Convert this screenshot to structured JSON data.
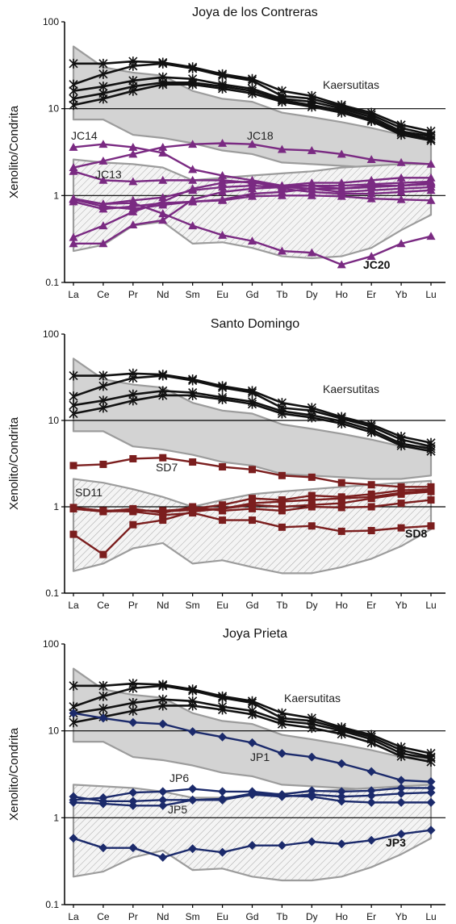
{
  "chart_data": [
    {
      "type": "line",
      "title": "Joya de los Contreras",
      "ylabel": "Xenolito/Condrita",
      "xlabel": "",
      "categories": [
        "La",
        "Ce",
        "Pr",
        "Nd",
        "Sm",
        "Eu",
        "Gd",
        "Tb",
        "Dy",
        "Ho",
        "Er",
        "Yb",
        "Lu"
      ],
      "yscale": "log",
      "ylim": [
        0.1,
        100
      ],
      "yticks": [
        "100",
        "10",
        "1",
        "0.1"
      ],
      "ref_lines": [
        10,
        1
      ],
      "fields": [
        {
          "label": "Kaersutitas",
          "style": "solid-gray",
          "upper": [
            52,
            30,
            26,
            24,
            16,
            13,
            12,
            9,
            8,
            7,
            6,
            5,
            5
          ],
          "lower": [
            7.5,
            7.5,
            5,
            4.6,
            4,
            3.3,
            3,
            2.4,
            2.3,
            2.2,
            2.1,
            2.1,
            2.3
          ]
        },
        {
          "label": "",
          "style": "hatched",
          "upper": [
            2.6,
            2.4,
            2.3,
            2.1,
            1.5,
            1.6,
            1.7,
            1.8,
            1.9,
            2.1,
            2.2,
            2.3,
            2.3
          ],
          "lower": [
            0.23,
            0.27,
            0.45,
            0.5,
            0.28,
            0.29,
            0.25,
            0.2,
            0.19,
            0.2,
            0.25,
            0.4,
            0.6
          ]
        }
      ],
      "series": [
        {
          "group": "Kaersutitas",
          "marker": "asterisk",
          "color": "#111111",
          "values": [
            33,
            33,
            35,
            34,
            30,
            25,
            22,
            16,
            14,
            11,
            9,
            6.5,
            5.5
          ]
        },
        {
          "group": "Kaersutitas",
          "marker": "asterisk",
          "color": "#111111",
          "values": [
            19,
            25,
            31,
            33,
            29,
            24,
            21,
            14,
            13,
            10.5,
            8.5,
            6,
            5
          ]
        },
        {
          "group": "Kaersutitas",
          "marker": "asterisk",
          "color": "#111111",
          "values": [
            16,
            18,
            21,
            23,
            22,
            19,
            17,
            13,
            12,
            10,
            8,
            5.5,
            4.8
          ]
        },
        {
          "group": "Kaersutitas",
          "marker": "asterisk",
          "color": "#111111",
          "values": [
            13,
            15,
            18,
            20,
            20,
            18,
            16,
            12.5,
            11,
            9.5,
            7.5,
            5.3,
            4.5
          ]
        },
        {
          "group": "Kaersutitas",
          "marker": "asterisk",
          "color": "#111111",
          "values": [
            11,
            13,
            16,
            19,
            19,
            17,
            15,
            12,
            10.5,
            9,
            7.2,
            5,
            4.3
          ]
        },
        {
          "name": "JC18",
          "marker": "triangle",
          "color": "#7a2a82",
          "values": [
            2.1,
            2.5,
            3,
            3.6,
            3.9,
            4,
            3.9,
            3.4,
            3.3,
            3,
            2.6,
            2.4,
            2.3
          ]
        },
        {
          "name": "JC14",
          "marker": "triangle",
          "color": "#7a2a82",
          "values": [
            3.6,
            3.9,
            3.6,
            3.1,
            2,
            1.7,
            1.5,
            1.3,
            1.3,
            1.2,
            1.3,
            1.3,
            1.4
          ]
        },
        {
          "name": "JC13",
          "marker": "triangle",
          "color": "#7a2a82",
          "values": [
            1.9,
            1.5,
            1.45,
            1.5,
            1.5,
            1.5,
            1.4,
            1.3,
            1.4,
            1.4,
            1.5,
            1.6,
            1.6
          ]
        },
        {
          "marker": "triangle",
          "color": "#7a2a82",
          "values": [
            0.92,
            0.8,
            0.88,
            0.95,
            1.15,
            1.25,
            1.3,
            1.25,
            1.2,
            1.2,
            1.25,
            1.3,
            1.35
          ]
        },
        {
          "marker": "triangle",
          "color": "#7a2a82",
          "values": [
            0.85,
            0.7,
            0.75,
            0.82,
            0.85,
            0.9,
            1.05,
            1.1,
            1.2,
            1.1,
            1.15,
            1.2,
            1.25
          ]
        },
        {
          "marker": "triangle",
          "color": "#7a2a82",
          "values": [
            0.9,
            0.75,
            0.7,
            0.78,
            0.85,
            0.88,
            0.98,
            1.0,
            1.0,
            0.98,
            0.92,
            0.9,
            0.88
          ]
        },
        {
          "marker": "triangle",
          "color": "#7a2a82",
          "values": [
            0.33,
            0.45,
            0.65,
            0.85,
            1.2,
            1.4,
            1.45,
            1.2,
            1.1,
            1.05,
            1.05,
            1.1,
            1.15
          ]
        },
        {
          "marker": "triangle",
          "color": "#7a2a82",
          "values": [
            0.28,
            0.28,
            0.46,
            0.52,
            0.9,
            1.1,
            1.2,
            1.25,
            1.3,
            1.3,
            1.35,
            1.4,
            1.45
          ]
        },
        {
          "name": "JC20",
          "marker": "triangle",
          "color": "#7a2a82",
          "values": [
            0.92,
            0.8,
            0.82,
            0.62,
            0.45,
            0.35,
            0.3,
            0.23,
            0.22,
            0.16,
            0.2,
            0.28,
            0.34
          ]
        }
      ],
      "labels": [
        {
          "text": "Kaersutitas",
          "bold": false
        },
        {
          "text": "JC14",
          "bold": false
        },
        {
          "text": "JC18",
          "bold": false
        },
        {
          "text": "JC13",
          "bold": false
        },
        {
          "text": "JC20",
          "bold": true
        }
      ]
    },
    {
      "type": "line",
      "title": "Santo Domingo",
      "ylabel": "Xenolito/Condrita",
      "xlabel": "",
      "categories": [
        "La",
        "Ce",
        "Pr",
        "Nd",
        "Sm",
        "Eu",
        "Gd",
        "Tb",
        "Dy",
        "Ho",
        "Er",
        "Yb",
        "Lu"
      ],
      "yscale": "log",
      "ylim": [
        0.1,
        100
      ],
      "yticks": [
        "100",
        "10",
        "1",
        "0.1"
      ],
      "ref_lines": [
        10,
        1
      ],
      "fields": [
        {
          "label": "Kaersutitas",
          "style": "solid-gray",
          "upper": [
            52,
            30,
            26,
            24,
            16,
            13,
            12,
            9,
            8,
            7,
            6,
            5,
            5
          ],
          "lower": [
            7.5,
            7.5,
            5,
            4.6,
            4,
            3.3,
            3,
            2.4,
            2.3,
            2.2,
            2.1,
            2.1,
            2.3
          ]
        },
        {
          "label": "",
          "style": "hatched",
          "upper": [
            2.1,
            1.9,
            1.6,
            1.3,
            1.0,
            1.2,
            1.4,
            1.5,
            1.6,
            1.7,
            1.8,
            1.9,
            2.0
          ],
          "lower": [
            0.18,
            0.22,
            0.33,
            0.38,
            0.22,
            0.24,
            0.2,
            0.17,
            0.17,
            0.2,
            0.25,
            0.35,
            0.55
          ]
        }
      ],
      "series": [
        {
          "group": "Kaersutitas",
          "marker": "asterisk",
          "color": "#111111",
          "values": [
            33,
            33,
            35,
            34,
            30,
            25,
            22,
            16,
            14,
            11,
            9,
            6.5,
            5.5
          ]
        },
        {
          "group": "Kaersutitas",
          "marker": "asterisk",
          "color": "#111111",
          "values": [
            19,
            25,
            31,
            33,
            29,
            24,
            21,
            14,
            13,
            10.5,
            8.5,
            6,
            5
          ]
        },
        {
          "group": "Kaersutitas",
          "marker": "asterisk",
          "color": "#111111",
          "values": [
            15,
            17,
            20,
            22,
            21,
            18.5,
            16.5,
            12.8,
            11.5,
            9.8,
            7.8,
            5.4,
            4.7
          ]
        },
        {
          "group": "Kaersutitas",
          "marker": "asterisk",
          "color": "#111111",
          "values": [
            12,
            14,
            17,
            19.5,
            19.5,
            17.5,
            15.5,
            12,
            10.8,
            9.2,
            7.3,
            5.1,
            4.4
          ]
        },
        {
          "name": "SD7",
          "marker": "square",
          "color": "#7b1e1e",
          "values": [
            3,
            3.1,
            3.6,
            3.7,
            3.3,
            2.9,
            2.7,
            2.3,
            2.2,
            1.9,
            1.8,
            1.7,
            1.7
          ]
        },
        {
          "name": "SD11",
          "marker": "square",
          "color": "#7b1e1e",
          "values": [
            0.95,
            0.88,
            0.9,
            0.9,
            0.95,
            1.05,
            1.25,
            1.2,
            1.35,
            1.3,
            1.4,
            1.55,
            1.6
          ]
        },
        {
          "marker": "square",
          "color": "#7b1e1e",
          "values": [
            0.98,
            0.9,
            0.92,
            0.88,
            0.92,
            0.95,
            1.05,
            1.0,
            1.05,
            1.1,
            1.25,
            1.4,
            1.5
          ]
        },
        {
          "marker": "square",
          "color": "#7b1e1e",
          "values": [
            0.95,
            0.88,
            0.95,
            0.85,
            1.0,
            0.9,
            0.95,
            0.9,
            1.0,
            0.98,
            1.0,
            1.1,
            1.2
          ]
        },
        {
          "marker": "square",
          "color": "#7b1e1e",
          "values": [
            0.98,
            0.9,
            0.88,
            0.8,
            0.85,
            0.7,
            0.7,
            0.58,
            0.6,
            0.52,
            0.53,
            0.57,
            0.6
          ]
        },
        {
          "name": "SD8",
          "marker": "square",
          "color": "#7b1e1e",
          "values": [
            0.48,
            0.28,
            0.62,
            0.7,
            0.88,
            0.95,
            1.1,
            1.15,
            1.2,
            1.25,
            1.3,
            1.45,
            1.55
          ]
        }
      ],
      "labels": [
        {
          "text": "Kaersutitas",
          "bold": false
        },
        {
          "text": "SD7",
          "bold": false
        },
        {
          "text": "SD11",
          "bold": false
        },
        {
          "text": "SD8",
          "bold": true
        }
      ]
    },
    {
      "type": "line",
      "title": "Joya Prieta",
      "ylabel": "Xenolito/Condrita",
      "xlabel": "",
      "categories": [
        "La",
        "Ce",
        "Pr",
        "Nd",
        "Sm",
        "Eu",
        "Gd",
        "Tb",
        "Dy",
        "Ho",
        "Er",
        "Yb",
        "Lu"
      ],
      "yscale": "log",
      "ylim": [
        0.1,
        100
      ],
      "yticks": [
        "100",
        "10",
        "1",
        "0.1"
      ],
      "ref_lines": [
        10,
        1
      ],
      "fields": [
        {
          "label": "Kaersutitas",
          "style": "solid-gray",
          "upper": [
            52,
            30,
            26,
            24,
            16,
            13,
            12,
            9,
            8,
            7,
            6,
            5,
            5
          ],
          "lower": [
            7.5,
            7.5,
            5,
            4.6,
            4,
            3.3,
            3,
            2.4,
            2.3,
            2.2,
            2.1,
            2.1,
            2.3
          ]
        },
        {
          "label": "",
          "style": "hatched",
          "upper": [
            2.4,
            2.3,
            2.2,
            2.0,
            1.7,
            1.7,
            1.8,
            1.9,
            2.0,
            2.1,
            2.2,
            2.3,
            2.4
          ],
          "lower": [
            0.21,
            0.24,
            0.35,
            0.42,
            0.25,
            0.26,
            0.21,
            0.19,
            0.19,
            0.21,
            0.27,
            0.38,
            0.58
          ]
        }
      ],
      "series": [
        {
          "group": "Kaersutitas",
          "marker": "asterisk",
          "color": "#111111",
          "values": [
            33,
            33,
            35,
            34,
            30,
            25,
            22,
            16,
            14,
            11,
            9,
            6.5,
            5.5
          ]
        },
        {
          "group": "Kaersutitas",
          "marker": "asterisk",
          "color": "#111111",
          "values": [
            19,
            25,
            31,
            33,
            29,
            24,
            21,
            14,
            13,
            10.5,
            8.5,
            6,
            5
          ]
        },
        {
          "group": "Kaersutitas",
          "marker": "asterisk",
          "color": "#111111",
          "values": [
            16,
            18,
            21,
            23,
            22,
            19,
            17,
            13,
            12,
            10,
            8,
            5.5,
            4.8
          ]
        },
        {
          "group": "Kaersutitas",
          "marker": "asterisk",
          "color": "#111111",
          "values": [
            12.5,
            14.5,
            17,
            19.5,
            19.5,
            17.5,
            15.5,
            12,
            10.8,
            9.2,
            7.3,
            5.1,
            4.4
          ]
        },
        {
          "name": "JP1",
          "marker": "diamond",
          "color": "#1b2a6b",
          "values": [
            16,
            14,
            12.5,
            12,
            9.8,
            8.5,
            7.3,
            5.5,
            5,
            4.2,
            3.4,
            2.7,
            2.6
          ]
        },
        {
          "name": "JP6",
          "marker": "diamond",
          "color": "#1b2a6b",
          "values": [
            1.6,
            1.7,
            1.95,
            2,
            2.15,
            2.0,
            2.0,
            1.85,
            2.05,
            2.0,
            2.05,
            2.2,
            2.2
          ]
        },
        {
          "marker": "diamond",
          "color": "#1b2a6b",
          "values": [
            1.75,
            1.55,
            1.55,
            1.6,
            1.6,
            1.6,
            1.85,
            1.75,
            1.85,
            1.75,
            1.8,
            1.9,
            1.95
          ]
        },
        {
          "name": "JP5",
          "marker": "diamond",
          "color": "#1b2a6b",
          "values": [
            1.5,
            1.45,
            1.38,
            1.38,
            1.6,
            1.65,
            1.9,
            1.8,
            1.75,
            1.55,
            1.5,
            1.5,
            1.5
          ]
        },
        {
          "name": "JP3",
          "marker": "diamond",
          "color": "#1b2a6b",
          "values": [
            0.58,
            0.45,
            0.45,
            0.35,
            0.44,
            0.4,
            0.48,
            0.48,
            0.53,
            0.5,
            0.55,
            0.65,
            0.72
          ]
        }
      ],
      "labels": [
        {
          "text": "Kaersutitas",
          "bold": false
        },
        {
          "text": "JP1",
          "bold": false
        },
        {
          "text": "JP6",
          "bold": false
        },
        {
          "text": "JP5",
          "bold": false
        },
        {
          "text": "JP3",
          "bold": true
        }
      ]
    }
  ]
}
